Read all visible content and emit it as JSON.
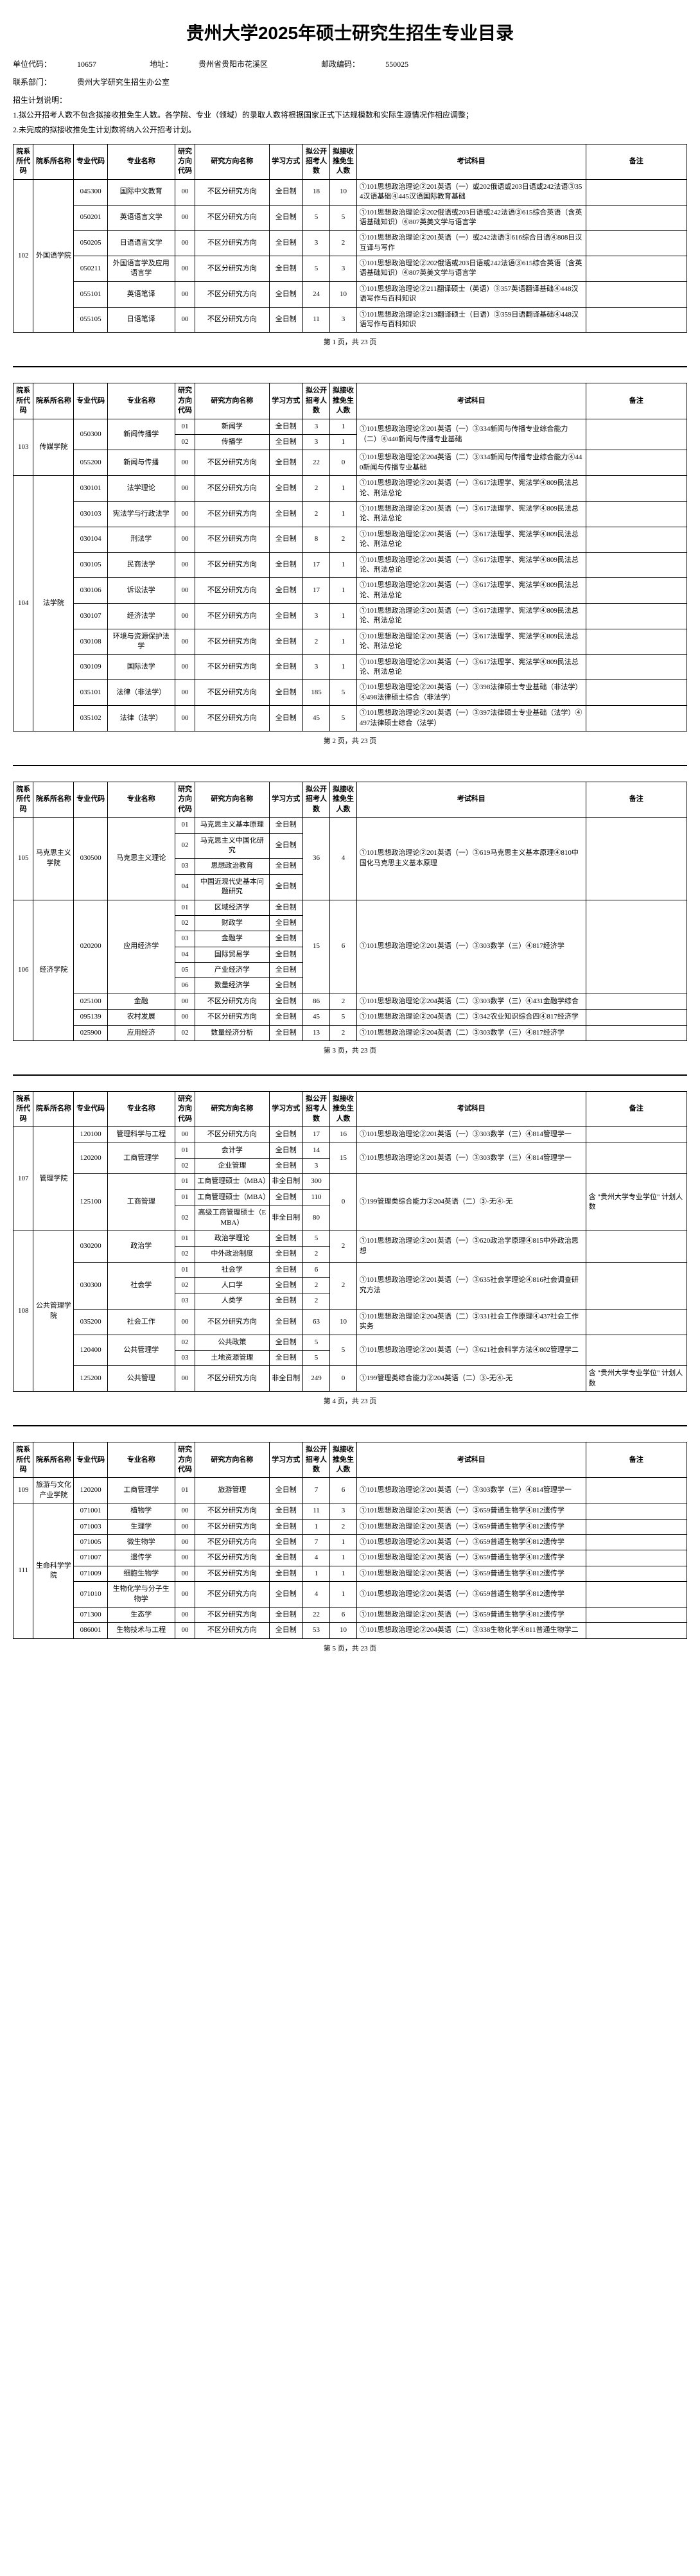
{
  "doc_title": "贵州大学2025年硕士研究生招生专业目录",
  "header": {
    "unit_code_label": "单位代码：",
    "unit_code": "10657",
    "addr_label": "地址：",
    "addr": "贵州省贵阳市花溪区",
    "post_label": "邮政编码：",
    "post": "550025",
    "contact_label": "联系部门：",
    "contact": "贵州大学研究生招生办公室",
    "explain_title": "招生计划说明：",
    "explain1": "1.拟公开招考人数不包含拟接收推免生人数。各学院、专业（领域）的录取人数将根据国家正式下达规模数和实际生源情况作相应调整；",
    "explain2": "2.未完成的拟接收推免生计划数将纳入公开招考计划。"
  },
  "table_headers": {
    "dept_code": "院系所代码",
    "dept_name": "院系所名称",
    "major_code": "专业代码",
    "major_name": "专业名称",
    "dir_code": "研究方向代码",
    "dir_name": "研究方向名称",
    "mode": "学习方式",
    "pub": "拟公开招考人数",
    "exmp": "拟接收推免生人数",
    "exam": "考试科目",
    "note": "备注"
  },
  "pager": {
    "p1": "第 1 页，共 23 页",
    "p2": "第 2 页，共 23 页",
    "p3": "第 3 页，共 23 页",
    "p4": "第 4 页，共 23 页",
    "p5": "第 5 页，共 23 页"
  },
  "p1": {
    "dept_code": "102",
    "dept_name": "外国语学院",
    "rows": [
      {
        "mc": "045300",
        "mn": "国际中文教育",
        "dc": "00",
        "dn": "不区分研究方向",
        "mode": "全日制",
        "a": "18",
        "b": "10",
        "ex": "①101思想政治理论②201英语（一）或202俄语或203日语或242法语③354汉语基础④445汉语国际教育基础",
        "nt": ""
      },
      {
        "mc": "050201",
        "mn": "英语语言文学",
        "dc": "00",
        "dn": "不区分研究方向",
        "mode": "全日制",
        "a": "5",
        "b": "5",
        "ex": "①101思想政治理论②202俄语或203日语或242法语③615综合英语（含英语基础知识）④807英美文学与语言学",
        "nt": ""
      },
      {
        "mc": "050205",
        "mn": "日语语言文学",
        "dc": "00",
        "dn": "不区分研究方向",
        "mode": "全日制",
        "a": "3",
        "b": "2",
        "ex": "①101思想政治理论②201英语（一）或242法语③616综合日语④808日汉互译与写作",
        "nt": ""
      },
      {
        "mc": "050211",
        "mn": "外国语言学及应用语言学",
        "dc": "00",
        "dn": "不区分研究方向",
        "mode": "全日制",
        "a": "5",
        "b": "3",
        "ex": "①101思想政治理论②202俄语或203日语或242法语③615综合英语（含英语基础知识）④807英美文学与语言学",
        "nt": ""
      },
      {
        "mc": "055101",
        "mn": "英语笔译",
        "dc": "00",
        "dn": "不区分研究方向",
        "mode": "全日制",
        "a": "24",
        "b": "10",
        "ex": "①101思想政治理论②211翻译硕士（英语）③357英语翻译基础④448汉语写作与百科知识",
        "nt": ""
      },
      {
        "mc": "055105",
        "mn": "日语笔译",
        "dc": "00",
        "dn": "不区分研究方向",
        "mode": "全日制",
        "a": "11",
        "b": "3",
        "ex": "①101思想政治理论②213翻译硕士（日语）③359日语翻译基础④448汉语写作与百科知识",
        "nt": ""
      }
    ]
  },
  "p2": {
    "depts": [
      {
        "code": "103",
        "name": "传媒学院",
        "span": 2,
        "majors": [
          {
            "mc": "050300",
            "mn": "新闻传播学",
            "dirs": [
              {
                "dc": "01",
                "dn": "新闻学",
                "mode": "全日制",
                "a": "3",
                "b": "1",
                "ex": "①101思想政治理论②201英语（一）③334新闻与传播专业综合能力（二）④440新闻与传播专业基础",
                "ex_span": 2
              },
              {
                "dc": "02",
                "dn": "传播学",
                "mode": "全日制",
                "a": "3",
                "b": "1"
              }
            ]
          },
          {
            "mc": "055200",
            "mn": "新闻与传播",
            "dirs": [
              {
                "dc": "00",
                "dn": "不区分研究方向",
                "mode": "全日制",
                "a": "22",
                "b": "0",
                "ex": "①101思想政治理论②204英语（二）③334新闻与传播专业综合能力④440新闻与传播专业基础"
              }
            ]
          }
        ]
      },
      {
        "code": "104",
        "name": "法学院",
        "span": 10,
        "majors": [
          {
            "mc": "030101",
            "mn": "法学理论",
            "dirs": [
              {
                "dc": "00",
                "dn": "不区分研究方向",
                "mode": "全日制",
                "a": "2",
                "b": "1",
                "ex": "①101思想政治理论②201英语（一）③617法理学、宪法学④809民法总论、刑法总论"
              }
            ]
          },
          {
            "mc": "030103",
            "mn": "宪法学与行政法学",
            "dirs": [
              {
                "dc": "00",
                "dn": "不区分研究方向",
                "mode": "全日制",
                "a": "2",
                "b": "1",
                "ex": "①101思想政治理论②201英语（一）③617法理学、宪法学④809民法总论、刑法总论"
              }
            ]
          },
          {
            "mc": "030104",
            "mn": "刑法学",
            "dirs": [
              {
                "dc": "00",
                "dn": "不区分研究方向",
                "mode": "全日制",
                "a": "8",
                "b": "2",
                "ex": "①101思想政治理论②201英语（一）③617法理学、宪法学④809民法总论、刑法总论"
              }
            ]
          },
          {
            "mc": "030105",
            "mn": "民商法学",
            "dirs": [
              {
                "dc": "00",
                "dn": "不区分研究方向",
                "mode": "全日制",
                "a": "17",
                "b": "1",
                "ex": "①101思想政治理论②201英语（一）③617法理学、宪法学④809民法总论、刑法总论"
              }
            ]
          },
          {
            "mc": "030106",
            "mn": "诉讼法学",
            "dirs": [
              {
                "dc": "00",
                "dn": "不区分研究方向",
                "mode": "全日制",
                "a": "17",
                "b": "1",
                "ex": "①101思想政治理论②201英语（一）③617法理学、宪法学④809民法总论、刑法总论"
              }
            ]
          },
          {
            "mc": "030107",
            "mn": "经济法学",
            "dirs": [
              {
                "dc": "00",
                "dn": "不区分研究方向",
                "mode": "全日制",
                "a": "3",
                "b": "1",
                "ex": "①101思想政治理论②201英语（一）③617法理学、宪法学④809民法总论、刑法总论"
              }
            ]
          },
          {
            "mc": "030108",
            "mn": "环境与资源保护法学",
            "dirs": [
              {
                "dc": "00",
                "dn": "不区分研究方向",
                "mode": "全日制",
                "a": "2",
                "b": "1",
                "ex": "①101思想政治理论②201英语（一）③617法理学、宪法学④809民法总论、刑法总论"
              }
            ]
          },
          {
            "mc": "030109",
            "mn": "国际法学",
            "dirs": [
              {
                "dc": "00",
                "dn": "不区分研究方向",
                "mode": "全日制",
                "a": "3",
                "b": "1",
                "ex": "①101思想政治理论②201英语（一）③617法理学、宪法学④809民法总论、刑法总论"
              }
            ]
          },
          {
            "mc": "035101",
            "mn": "法律（非法学）",
            "dirs": [
              {
                "dc": "00",
                "dn": "不区分研究方向",
                "mode": "全日制",
                "a": "185",
                "b": "5",
                "ex": "①101思想政治理论②201英语（一）③398法律硕士专业基础（非法学）④498法律硕士综合（非法学）"
              }
            ]
          },
          {
            "mc": "035102",
            "mn": "法律（法学）",
            "dirs": [
              {
                "dc": "00",
                "dn": "不区分研究方向",
                "mode": "全日制",
                "a": "45",
                "b": "5",
                "ex": "①101思想政治理论②201英语（一）③397法律硕士专业基础（法学）④497法律硕士综合（法学）"
              }
            ]
          }
        ]
      }
    ]
  },
  "p3": {
    "depts": [
      {
        "code": "105",
        "name": "马克思主义学院",
        "span": 4,
        "majors": [
          {
            "mc": "030500",
            "mn": "马克思主义理论",
            "dirs": [
              {
                "dc": "01",
                "dn": "马克思主义基本原理",
                "mode": "全日制",
                "a_span": 4,
                "a": "36",
                "b_span": 4,
                "b": "4",
                "ex": "①101思想政治理论②201英语（一）③619马克思主义基本原理④810中国化马克思主义基本原理",
                "ex_span": 4
              },
              {
                "dc": "02",
                "dn": "马克思主义中国化研究",
                "mode": "全日制"
              },
              {
                "dc": "03",
                "dn": "思想政治教育",
                "mode": "全日制"
              },
              {
                "dc": "04",
                "dn": "中国近现代史基本问题研究",
                "mode": "全日制"
              }
            ]
          }
        ]
      },
      {
        "code": "106",
        "name": "经济学院",
        "span": 9,
        "majors": [
          {
            "mc": "020200",
            "mn": "应用经济学",
            "span": 6,
            "dirs": [
              {
                "dc": "01",
                "dn": "区域经济学",
                "mode": "全日制",
                "a_span": 6,
                "a": "15",
                "b_span": 6,
                "b": "6",
                "ex": "①101思想政治理论②201英语（一）③303数学（三）④817经济学",
                "ex_span": 6
              },
              {
                "dc": "02",
                "dn": "财政学",
                "mode": "全日制"
              },
              {
                "dc": "03",
                "dn": "金融学",
                "mode": "全日制"
              },
              {
                "dc": "04",
                "dn": "国际贸易学",
                "mode": "全日制"
              },
              {
                "dc": "05",
                "dn": "产业经济学",
                "mode": "全日制"
              },
              {
                "dc": "06",
                "dn": "数量经济学",
                "mode": "全日制"
              }
            ]
          },
          {
            "mc": "025100",
            "mn": "金融",
            "dirs": [
              {
                "dc": "00",
                "dn": "不区分研究方向",
                "mode": "全日制",
                "a": "86",
                "b": "2",
                "ex": "①101思想政治理论②204英语（二）③303数学（三）④431金融学综合"
              }
            ]
          },
          {
            "mc": "095139",
            "mn": "农村发展",
            "dirs": [
              {
                "dc": "00",
                "dn": "不区分研究方向",
                "mode": "全日制",
                "a": "45",
                "b": "5",
                "ex": "①101思想政治理论②204英语（二）③342农业知识综合四④817经济学"
              }
            ]
          },
          {
            "mc": "025900",
            "mn": "应用经济",
            "dirs": [
              {
                "dc": "02",
                "dn": "数量经济分析",
                "mode": "全日制",
                "a": "13",
                "b": "2",
                "ex": "①101思想政治理论②204英语（二）③303数学（三）④817经济学"
              }
            ]
          }
        ]
      }
    ]
  },
  "p4": {
    "depts": [
      {
        "code": "107",
        "name": "管理学院",
        "span": 6,
        "majors": [
          {
            "mc": "120100",
            "mn": "管理科学与工程",
            "dirs": [
              {
                "dc": "00",
                "dn": "不区分研究方向",
                "mode": "全日制",
                "a": "17",
                "b": "16",
                "ex": "①101思想政治理论②201英语（一）③303数学（三）④814管理学一"
              }
            ]
          },
          {
            "mc": "120200",
            "mn": "工商管理学",
            "dirs": [
              {
                "dc": "01",
                "dn": "会计学",
                "mode": "全日制",
                "a": "14",
                "b_span": 2,
                "b": "15",
                "ex": "①101思想政治理论②201英语（一）③303数学（三）④814管理学一",
                "ex_span": 2
              },
              {
                "dc": "02",
                "dn": "企业管理",
                "mode": "全日制",
                "a": "3"
              }
            ]
          },
          {
            "mc": "125100",
            "mn": "工商管理",
            "dirs": [
              {
                "dc": "01",
                "dn": "工商管理硕士（MBA）",
                "mode": "非全日制",
                "a": "300",
                "b_span": 3,
                "b": "0",
                "ex": "①199管理类综合能力②204英语（二）③-无④-无",
                "ex_span": 3,
                "nt": "含 \"贵州大学专业学位\" 计划人数",
                "nt_span": 3
              },
              {
                "dc": "01",
                "dn": "工商管理硕士（MBA）",
                "mode": "全日制",
                "a": "110"
              },
              {
                "dc": "02",
                "dn": "高级工商管理硕士（EMBA）",
                "mode": "非全日制",
                "a": "80"
              }
            ]
          }
        ]
      },
      {
        "code": "108",
        "name": "公共管理学院",
        "span": 8,
        "majors": [
          {
            "mc": "030200",
            "mn": "政治学",
            "dirs": [
              {
                "dc": "01",
                "dn": "政治学理论",
                "mode": "全日制",
                "a": "5",
                "b_span": 2,
                "b": "2",
                "ex": "①101思想政治理论②201英语（一）③620政治学原理④815中外政治思想",
                "ex_span": 2
              },
              {
                "dc": "02",
                "dn": "中外政治制度",
                "mode": "全日制",
                "a": "2"
              }
            ]
          },
          {
            "mc": "030300",
            "mn": "社会学",
            "dirs": [
              {
                "dc": "01",
                "dn": "社会学",
                "mode": "全日制",
                "a": "6",
                "b_span": 3,
                "b": "2",
                "ex": "①101思想政治理论②201英语（一）③635社会学理论④816社会调查研究方法",
                "ex_span": 3
              },
              {
                "dc": "02",
                "dn": "人口学",
                "mode": "全日制",
                "a": "2"
              },
              {
                "dc": "03",
                "dn": "人类学",
                "mode": "全日制",
                "a": "2"
              }
            ]
          },
          {
            "mc": "035200",
            "mn": "社会工作",
            "dirs": [
              {
                "dc": "00",
                "dn": "不区分研究方向",
                "mode": "全日制",
                "a": "63",
                "b": "10",
                "ex": "①101思想政治理论②204英语（二）③331社会工作原理④437社会工作实务"
              }
            ]
          },
          {
            "mc": "120400",
            "mn": "公共管理学",
            "dirs": [
              {
                "dc": "02",
                "dn": "公共政策",
                "mode": "全日制",
                "a": "5",
                "b_span": 2,
                "b": "5",
                "ex": "①101思想政治理论②201英语（一）③621社会科学方法④802管理学二",
                "ex_span": 2
              },
              {
                "dc": "03",
                "dn": "土地资源管理",
                "mode": "全日制",
                "a": "5"
              }
            ]
          },
          {
            "mc": "125200",
            "mn": "公共管理",
            "dirs": [
              {
                "dc": "00",
                "dn": "不区分研究方向",
                "mode": "非全日制",
                "a": "249",
                "b": "0",
                "ex": "①199管理类综合能力②204英语（二）③-无④-无",
                "nt": "含 \"贵州大学专业学位\" 计划人数"
              }
            ]
          }
        ]
      }
    ]
  },
  "p5": {
    "depts": [
      {
        "code": "109",
        "name": "旅游与文化产业学院",
        "span": 1,
        "majors": [
          {
            "mc": "120200",
            "mn": "工商管理学",
            "dirs": [
              {
                "dc": "01",
                "dn": "旅游管理",
                "mode": "全日制",
                "a": "7",
                "b": "6",
                "ex": "①101思想政治理论②201英语（一）③303数学（三）④814管理学一"
              }
            ]
          }
        ]
      },
      {
        "code": "111",
        "name": "生命科学学院",
        "span": 8,
        "majors": [
          {
            "mc": "071001",
            "mn": "植物学",
            "dirs": [
              {
                "dc": "00",
                "dn": "不区分研究方向",
                "mode": "全日制",
                "a": "11",
                "b": "3",
                "ex": "①101思想政治理论②201英语（一）③659普通生物学④812遗传学"
              }
            ]
          },
          {
            "mc": "071003",
            "mn": "生理学",
            "dirs": [
              {
                "dc": "00",
                "dn": "不区分研究方向",
                "mode": "全日制",
                "a": "1",
                "b": "2",
                "ex": "①101思想政治理论②201英语（一）③659普通生物学④812遗传学"
              }
            ]
          },
          {
            "mc": "071005",
            "mn": "微生物学",
            "dirs": [
              {
                "dc": "00",
                "dn": "不区分研究方向",
                "mode": "全日制",
                "a": "7",
                "b": "1",
                "ex": "①101思想政治理论②201英语（一）③659普通生物学④812遗传学"
              }
            ]
          },
          {
            "mc": "071007",
            "mn": "遗传学",
            "dirs": [
              {
                "dc": "00",
                "dn": "不区分研究方向",
                "mode": "全日制",
                "a": "4",
                "b": "1",
                "ex": "①101思想政治理论②201英语（一）③659普通生物学④812遗传学"
              }
            ]
          },
          {
            "mc": "071009",
            "mn": "细胞生物学",
            "dirs": [
              {
                "dc": "00",
                "dn": "不区分研究方向",
                "mode": "全日制",
                "a": "1",
                "b": "1",
                "ex": "①101思想政治理论②201英语（一）③659普通生物学④812遗传学"
              }
            ]
          },
          {
            "mc": "071010",
            "mn": "生物化学与分子生物学",
            "dirs": [
              {
                "dc": "00",
                "dn": "不区分研究方向",
                "mode": "全日制",
                "a": "4",
                "b": "1",
                "ex": "①101思想政治理论②201英语（一）③659普通生物学④812遗传学"
              }
            ]
          },
          {
            "mc": "071300",
            "mn": "生态学",
            "dirs": [
              {
                "dc": "00",
                "dn": "不区分研究方向",
                "mode": "全日制",
                "a": "22",
                "b": "6",
                "ex": "①101思想政治理论②201英语（一）③659普通生物学④812遗传学"
              }
            ]
          },
          {
            "mc": "086001",
            "mn": "生物技术与工程",
            "dirs": [
              {
                "dc": "00",
                "dn": "不区分研究方向",
                "mode": "全日制",
                "a": "53",
                "b": "10",
                "ex": "①101思想政治理论②204英语（二）③338生物化学④811普通生物学二"
              }
            ]
          }
        ]
      }
    ]
  }
}
